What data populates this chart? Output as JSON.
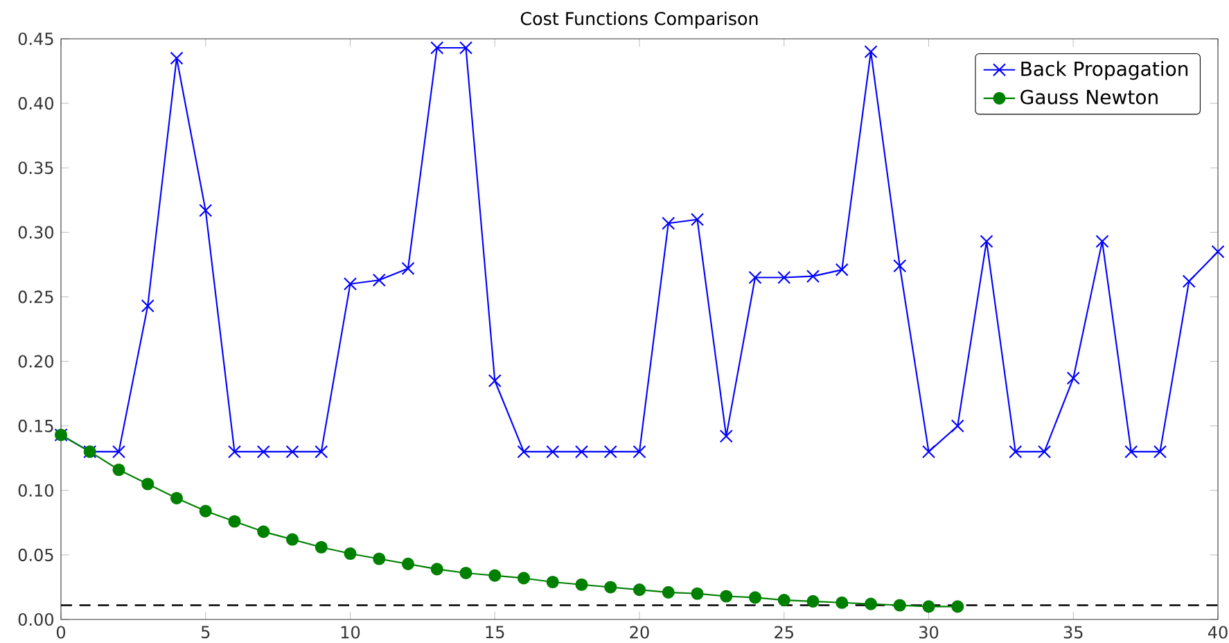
{
  "chart_data": {
    "type": "line",
    "title": "Cost Functions Comparison",
    "xlim": [
      0,
      40
    ],
    "xticks": [
      0,
      5,
      10,
      15,
      20,
      25,
      30,
      35,
      40
    ],
    "ylim": [
      0,
      0.45
    ],
    "yticks": [
      {
        "value": 0,
        "label": "0.00"
      },
      {
        "value": 0.05,
        "label": "0.05"
      },
      {
        "value": 0.1,
        "label": "0.10"
      },
      {
        "value": 0.15,
        "label": "0.15"
      },
      {
        "value": 0.2,
        "label": "0.20"
      },
      {
        "value": 0.25,
        "label": "0.25"
      },
      {
        "value": 0.3,
        "label": "0.30"
      },
      {
        "value": 0.35,
        "label": "0.35"
      },
      {
        "value": 0.4,
        "label": "0.40"
      },
      {
        "value": 0.45,
        "label": "0.45"
      }
    ],
    "grid": false,
    "legend": "top right",
    "series": [
      {
        "name": "Back Propagation",
        "color": "#0000ff",
        "marker": "cross",
        "line_style": "solid",
        "x": [
          0,
          1,
          2,
          3,
          4,
          5,
          6,
          7,
          8,
          9,
          10,
          11,
          12,
          13,
          14,
          15,
          16,
          17,
          18,
          19,
          20,
          21,
          22,
          23,
          24,
          25,
          26,
          27,
          28,
          29,
          30,
          31,
          32,
          33,
          34,
          35,
          36,
          37,
          38,
          39,
          40
        ],
        "values": [
          0.143,
          0.13,
          0.13,
          0.243,
          0.435,
          0.317,
          0.13,
          0.13,
          0.13,
          0.13,
          0.26,
          0.263,
          0.272,
          0.443,
          0.443,
          0.185,
          0.13,
          0.13,
          0.13,
          0.13,
          0.13,
          0.307,
          0.31,
          0.142,
          0.265,
          0.265,
          0.266,
          0.271,
          0.44,
          0.274,
          0.13,
          0.15,
          0.293,
          0.13,
          0.13,
          0.187,
          0.293,
          0.13,
          0.13,
          0.262,
          0.285
        ]
      },
      {
        "name": "Gauss Newton",
        "color": "#008000",
        "marker": "circle",
        "line_style": "solid",
        "x": [
          0,
          1,
          2,
          3,
          4,
          5,
          6,
          7,
          8,
          9,
          10,
          11,
          12,
          13,
          14,
          15,
          16,
          17,
          18,
          19,
          20,
          21,
          22,
          23,
          24,
          25,
          26,
          27,
          28,
          29,
          30,
          31
        ],
        "values": [
          0.143,
          0.13,
          0.116,
          0.105,
          0.094,
          0.084,
          0.076,
          0.068,
          0.062,
          0.056,
          0.051,
          0.047,
          0.043,
          0.039,
          0.036,
          0.034,
          0.032,
          0.029,
          0.027,
          0.025,
          0.023,
          0.021,
          0.02,
          0.018,
          0.017,
          0.015,
          0.014,
          0.013,
          0.012,
          0.011,
          0.01,
          0.01
        ]
      }
    ],
    "ref_lines": [
      {
        "axis": "y",
        "value": 0.011,
        "color": "#000000",
        "line_style": "dashed"
      }
    ]
  }
}
